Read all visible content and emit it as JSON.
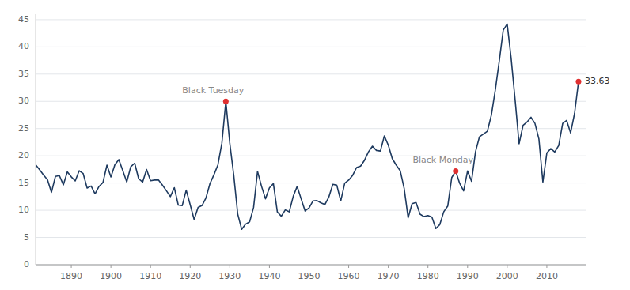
{
  "chart_data": {
    "type": "line",
    "color": "#1e3a5f",
    "grid": true,
    "xlim": [
      1881,
      2020
    ],
    "ylim": [
      0,
      46
    ],
    "xticks": [
      1890,
      1900,
      1910,
      1920,
      1930,
      1940,
      1950,
      1960,
      1970,
      1980,
      1990,
      2000,
      2010
    ],
    "yticks": [
      0,
      5,
      10,
      15,
      20,
      25,
      30,
      35,
      40,
      45
    ],
    "x": [
      1881,
      1882,
      1883,
      1884,
      1885,
      1886,
      1887,
      1888,
      1889,
      1890,
      1891,
      1892,
      1893,
      1894,
      1895,
      1896,
      1897,
      1898,
      1899,
      1900,
      1901,
      1902,
      1903,
      1904,
      1905,
      1906,
      1907,
      1908,
      1909,
      1910,
      1911,
      1912,
      1913,
      1914,
      1915,
      1916,
      1917,
      1918,
      1919,
      1920,
      1921,
      1922,
      1923,
      1924,
      1925,
      1926,
      1927,
      1928,
      1929,
      1930,
      1931,
      1932,
      1933,
      1934,
      1935,
      1936,
      1937,
      1938,
      1939,
      1940,
      1941,
      1942,
      1943,
      1944,
      1945,
      1946,
      1947,
      1948,
      1949,
      1950,
      1951,
      1952,
      1953,
      1954,
      1955,
      1956,
      1957,
      1958,
      1959,
      1960,
      1961,
      1962,
      1963,
      1964,
      1965,
      1966,
      1967,
      1968,
      1969,
      1970,
      1971,
      1972,
      1973,
      1974,
      1975,
      1976,
      1977,
      1978,
      1979,
      1980,
      1981,
      1982,
      1983,
      1984,
      1985,
      1986,
      1987,
      1988,
      1989,
      1990,
      1991,
      1992,
      1993,
      1994,
      1995,
      1996,
      1997,
      1998,
      1999,
      2000,
      2001,
      2002,
      2003,
      2004,
      2005,
      2006,
      2007,
      2008,
      2009,
      2010,
      2011,
      2012,
      2013,
      2014,
      2015,
      2016,
      2017,
      2018
    ],
    "values": [
      18.35,
      17.44,
      16.48,
      15.6,
      13.29,
      16.22,
      16.37,
      14.67,
      17.05,
      16.13,
      15.38,
      17.26,
      16.73,
      14.08,
      14.46,
      13.02,
      14.37,
      15.11,
      18.29,
      16.12,
      18.35,
      19.31,
      17.26,
      15.19,
      17.97,
      18.65,
      15.78,
      15.17,
      17.5,
      15.41,
      15.55,
      15.57,
      14.61,
      13.59,
      12.5,
      14.15,
      10.95,
      10.86,
      13.69,
      11.03,
      8.3,
      10.53,
      10.87,
      12.29,
      14.9,
      16.52,
      18.33,
      22.32,
      30.0,
      22.28,
      16.43,
      9.31,
      6.49,
      7.46,
      7.87,
      10.5,
      17.14,
      14.42,
      12.1,
      14.1,
      14.89,
      9.68,
      8.91,
      10.07,
      9.71,
      12.54,
      14.38,
      12.1,
      9.88,
      10.44,
      11.72,
      11.78,
      11.35,
      11.05,
      12.44,
      14.76,
      14.6,
      11.71,
      14.96,
      15.53,
      16.41,
      17.85,
      18.1,
      19.2,
      20.73,
      21.77,
      20.99,
      20.88,
      23.65,
      21.94,
      19.48,
      18.28,
      17.28,
      14.01,
      8.63,
      11.21,
      11.43,
      9.28,
      8.84,
      9.04,
      8.75,
      6.64,
      7.39,
      9.74,
      10.78,
      16.0,
      17.2,
      14.95,
      13.55,
      17.22,
      15.32,
      20.73,
      23.5,
      24.0,
      24.5,
      27.46,
      32.08,
      37.42,
      43.08,
      44.2,
      37.89,
      30.28,
      22.22,
      25.58,
      26.2,
      27.07,
      25.96,
      23.09,
      15.17,
      20.52,
      21.32,
      20.7,
      21.9,
      25.97,
      26.49,
      24.21,
      27.79,
      33.63
    ],
    "annotations": [
      {
        "label": "Black Tuesday",
        "x": 1929,
        "y": 30.0,
        "color": "#e03030"
      },
      {
        "label": "Black Monday",
        "x": 1987,
        "y": 17.2,
        "color": "#e03030"
      },
      {
        "label": "33.63",
        "x": 2018,
        "y": 33.63,
        "color": "#e03030"
      }
    ]
  }
}
